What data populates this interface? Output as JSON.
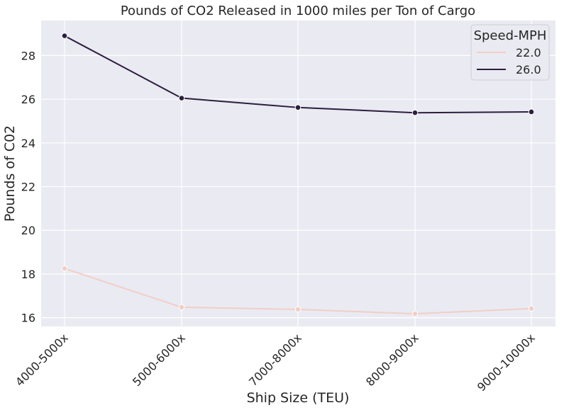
{
  "chart_data": {
    "type": "line",
    "title": "Pounds of CO2 Released in 1000 miles per Ton of Cargo",
    "xlabel": "Ship Size (TEU)",
    "ylabel": "Pounds of C02",
    "categories": [
      "4000-5000x",
      "5000-6000x",
      "7000-8000x",
      "8000-9000x",
      "9000-10000x"
    ],
    "ylim": [
      15.6,
      29.6
    ],
    "yticks": [
      "16",
      "18",
      "20",
      "22",
      "24",
      "26",
      "28"
    ],
    "grid": true,
    "legend": {
      "title": "Speed-MPH",
      "placement": "top-right"
    },
    "series": [
      {
        "name": "22.0",
        "color": "#f0cfc7",
        "values": [
          18.25,
          16.48,
          16.38,
          16.18,
          16.42
        ]
      },
      {
        "name": "26.0",
        "color": "#2c1e3d",
        "values": [
          28.9,
          26.05,
          25.62,
          25.38,
          25.42
        ]
      }
    ],
    "background": "#eaeaf2"
  }
}
